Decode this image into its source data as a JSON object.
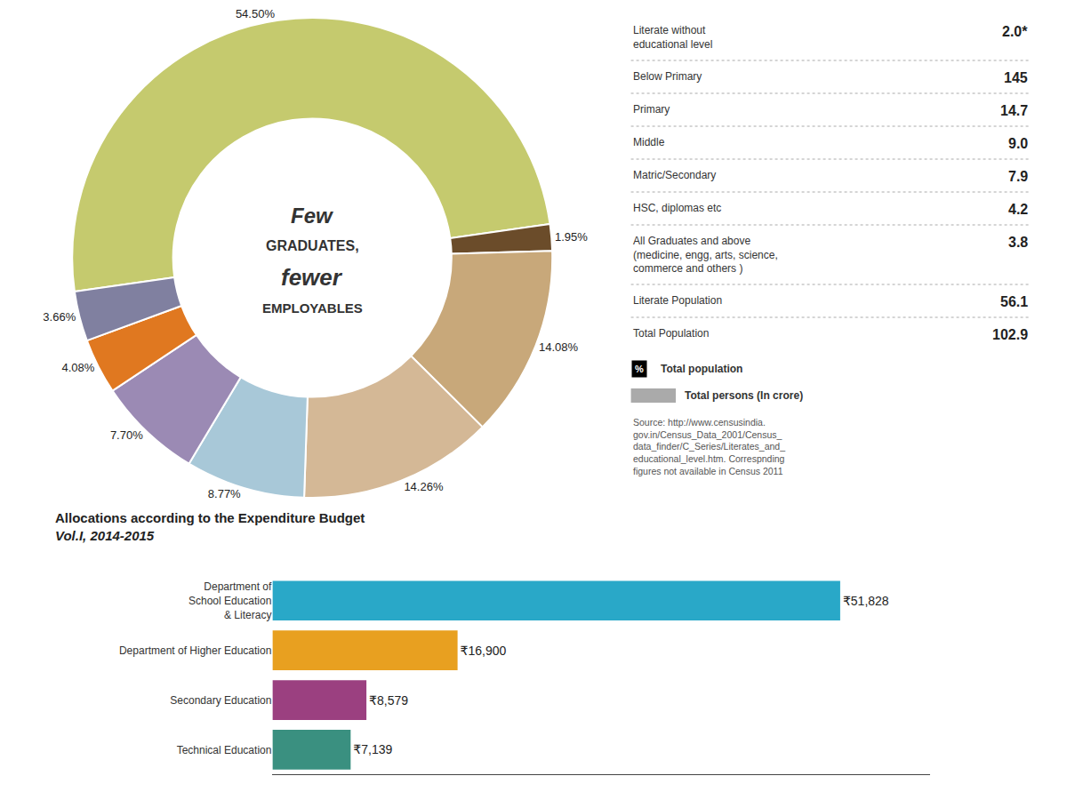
{
  "chart_data": [
    {
      "type": "pie",
      "values": [
        54.5,
        1.95,
        14.08,
        14.26,
        8.77,
        7.7,
        4.08,
        3.66
      ],
      "value_labels": [
        "54.50%",
        "1.95%",
        "14.08%",
        "14.26%",
        "8.77%",
        "7.70%",
        "4.08%",
        "3.66%"
      ],
      "colors": [
        "#c5ca6e",
        "#6b4c2a",
        "#c8a87a",
        "#d4b896",
        "#a8c8d8",
        "#9b8ab4",
        "#e07820",
        "#8080a0"
      ],
      "data_labels": true,
      "annotations": [
        "Few",
        "GRADUATES,",
        "fewer",
        "EMPLOYABLES"
      ]
    },
    {
      "type": "table",
      "categories": [
        "Literate without\neducational level",
        "Below Primary",
        "Primary",
        "Middle",
        "Matric/Secondary",
        "HSC, diplomas etc",
        "All Graduates and above\n(medicine, engg, arts, science,\ncommerce and others )",
        "Literate Population",
        "Total Population"
      ],
      "value_labels": [
        "2.0*",
        "145",
        "14.7",
        "9.0",
        "7.9",
        "4.2",
        "3.8",
        "56.1",
        "102.9"
      ],
      "annotations": [
        "%",
        "Total population",
        "Total persons (In crore)",
        "Source: http://www.censusindia.\ngov.in/Census_Data_2001/Census_\ndata_finder/C_Series/Literates_and_\neducational_level.htm. Correspnding\nfigures not available in Census 2011"
      ]
    },
    {
      "type": "bar",
      "orientation": "horizontal",
      "title": "Allocations according to the Expenditure Budget\nVol.I, 2014-2015",
      "categories": [
        "Department of\nSchool Education\n& Literacy",
        "Department of Higher Education",
        "Secondary Education",
        "Technical Education"
      ],
      "values": [
        51828,
        16900,
        8579,
        7139
      ],
      "value_labels": [
        "₹51,828",
        "₹16,900",
        "₹8,579",
        "₹7,139"
      ],
      "colors": [
        "#29a8c8",
        "#e8a020",
        "#9b4080",
        "#3a9080"
      ],
      "data_labels": true,
      "tick_labels": "y",
      "xlim": [
        0,
        60000
      ],
      "grid": false
    }
  ]
}
